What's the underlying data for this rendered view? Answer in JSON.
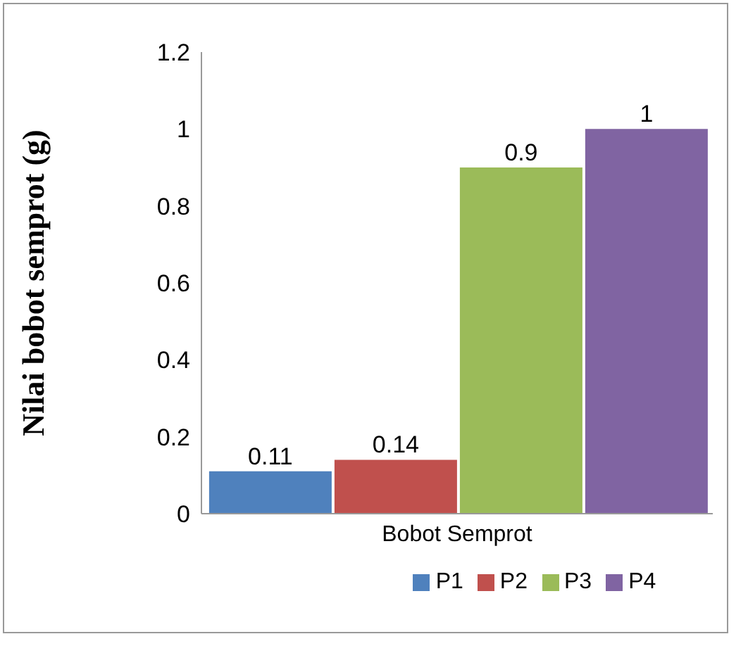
{
  "chart_data": {
    "type": "bar",
    "categories": [
      "Bobot Semprot"
    ],
    "ylabel": "Nilai bobot semprot (g)",
    "series": [
      {
        "name": "P1",
        "color": "#4f81bd",
        "values": [
          0.11
        ]
      },
      {
        "name": "P2",
        "color": "#c0504d",
        "values": [
          0.14
        ]
      },
      {
        "name": "P3",
        "color": "#9bbb59",
        "values": [
          0.9
        ]
      },
      {
        "name": "P4",
        "color": "#8064a2",
        "values": [
          1
        ]
      }
    ],
    "ylim": [
      0,
      1.2
    ],
    "yticks": [
      0,
      0.2,
      0.4,
      0.6,
      0.8,
      1,
      1.2
    ],
    "grid": false,
    "legend": "bottom",
    "data_labels": true
  }
}
